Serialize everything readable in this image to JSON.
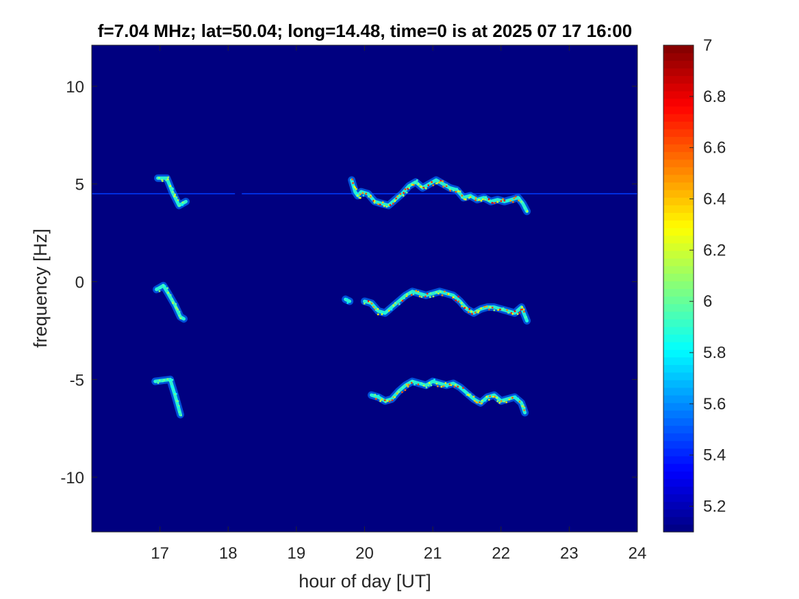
{
  "chart_data": {
    "type": "heatmap",
    "title": "f=7.04 MHz;  lat=50.04; long=14.48, time=0 is at 2025 07 17 16:00",
    "xlabel": "hour of day [UT]",
    "ylabel": "frequency [Hz]",
    "xlim": [
      16,
      24
    ],
    "ylim": [
      -12.8,
      12.1
    ],
    "xticks": [
      17,
      18,
      19,
      20,
      21,
      22,
      23,
      24
    ],
    "yticks": [
      -10,
      -5,
      0,
      5,
      10
    ],
    "colorbar": {
      "colormap": "jet",
      "clim": [
        5.1,
        7.0
      ],
      "ticks": [
        5.2,
        5.4,
        5.6,
        5.8,
        6,
        6.2,
        6.4,
        6.6,
        6.8,
        7
      ],
      "tick_labels": [
        "5.2",
        "5.4",
        "5.6",
        "5.8",
        "6",
        "6.2",
        "6.4",
        "6.6",
        "6.8",
        "7"
      ]
    },
    "background_value": 5.1,
    "carrier_line": {
      "frequency": 4.5,
      "value": 5.45,
      "segments": [
        [
          16.0,
          18.1
        ],
        [
          18.2,
          24.0
        ]
      ]
    },
    "traces": [
      {
        "band": "upper",
        "points": [
          [
            16.97,
            5.3
          ],
          [
            17.1,
            5.3
          ],
          [
            17.18,
            4.6
          ],
          [
            17.28,
            3.9
          ],
          [
            17.38,
            4.1
          ]
        ],
        "peak": 6.3
      },
      {
        "band": "upper",
        "points": [
          [
            19.81,
            5.2
          ],
          [
            19.86,
            4.6
          ],
          [
            19.9,
            4.4
          ],
          [
            19.95,
            4.6
          ],
          [
            20.05,
            4.5
          ],
          [
            20.15,
            4.1
          ],
          [
            20.25,
            4.0
          ],
          [
            20.35,
            3.9
          ],
          [
            20.45,
            4.2
          ],
          [
            20.55,
            4.5
          ],
          [
            20.65,
            4.9
          ],
          [
            20.75,
            5.1
          ],
          [
            20.85,
            4.8
          ],
          [
            20.95,
            5.0
          ],
          [
            21.05,
            5.2
          ],
          [
            21.15,
            5.0
          ],
          [
            21.25,
            4.8
          ],
          [
            21.35,
            4.7
          ],
          [
            21.45,
            4.3
          ],
          [
            21.55,
            4.4
          ],
          [
            21.65,
            4.2
          ],
          [
            21.75,
            4.3
          ],
          [
            21.85,
            4.1
          ],
          [
            21.95,
            4.2
          ],
          [
            22.05,
            4.1
          ],
          [
            22.15,
            4.2
          ],
          [
            22.25,
            4.3
          ],
          [
            22.32,
            4.0
          ],
          [
            22.38,
            3.6
          ]
        ],
        "peak": 6.8
      },
      {
        "band": "middle",
        "points": [
          [
            16.95,
            -0.4
          ],
          [
            17.05,
            -0.2
          ],
          [
            17.12,
            -0.6
          ],
          [
            17.22,
            -1.2
          ],
          [
            17.3,
            -1.8
          ],
          [
            17.35,
            -1.9
          ]
        ],
        "peak": 6.2
      },
      {
        "band": "middle",
        "points": [
          [
            19.72,
            -0.9
          ],
          [
            19.78,
            -1.0
          ]
        ],
        "peak": 5.7
      },
      {
        "band": "middle",
        "points": [
          [
            20.0,
            -1.0
          ],
          [
            20.1,
            -1.1
          ],
          [
            20.2,
            -1.5
          ],
          [
            20.3,
            -1.6
          ],
          [
            20.4,
            -1.3
          ],
          [
            20.5,
            -1.0
          ],
          [
            20.6,
            -0.7
          ],
          [
            20.7,
            -0.5
          ],
          [
            20.8,
            -0.6
          ],
          [
            20.9,
            -0.7
          ],
          [
            21.0,
            -0.6
          ],
          [
            21.1,
            -0.5
          ],
          [
            21.2,
            -0.6
          ],
          [
            21.3,
            -0.7
          ],
          [
            21.4,
            -1.0
          ],
          [
            21.5,
            -1.4
          ],
          [
            21.6,
            -1.6
          ],
          [
            21.7,
            -1.4
          ],
          [
            21.8,
            -1.3
          ],
          [
            21.9,
            -1.3
          ],
          [
            22.0,
            -1.4
          ],
          [
            22.1,
            -1.5
          ],
          [
            22.2,
            -1.6
          ],
          [
            22.3,
            -1.3
          ],
          [
            22.38,
            -2.0
          ]
        ],
        "peak": 6.8
      },
      {
        "band": "lower",
        "points": [
          [
            16.93,
            -5.1
          ],
          [
            17.15,
            -5.0
          ],
          [
            17.22,
            -5.8
          ],
          [
            17.3,
            -6.8
          ]
        ],
        "peak": 6.2
      },
      {
        "band": "lower",
        "points": [
          [
            20.1,
            -5.8
          ],
          [
            20.2,
            -5.9
          ],
          [
            20.3,
            -6.1
          ],
          [
            20.4,
            -6.0
          ],
          [
            20.5,
            -5.6
          ],
          [
            20.6,
            -5.3
          ],
          [
            20.7,
            -5.1
          ],
          [
            20.8,
            -5.2
          ],
          [
            20.9,
            -5.3
          ],
          [
            21.0,
            -5.1
          ],
          [
            21.1,
            -5.2
          ],
          [
            21.2,
            -5.3
          ],
          [
            21.3,
            -5.2
          ],
          [
            21.4,
            -5.4
          ],
          [
            21.5,
            -5.7
          ],
          [
            21.6,
            -6.0
          ],
          [
            21.7,
            -6.2
          ],
          [
            21.8,
            -5.9
          ],
          [
            21.9,
            -5.8
          ],
          [
            22.0,
            -6.1
          ],
          [
            22.1,
            -6.0
          ],
          [
            22.2,
            -5.9
          ],
          [
            22.3,
            -6.2
          ],
          [
            22.35,
            -6.7
          ]
        ],
        "peak": 6.7
      }
    ]
  }
}
